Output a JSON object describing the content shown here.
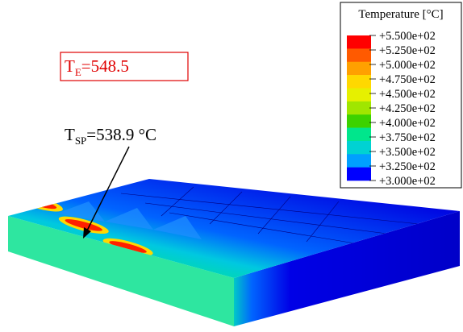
{
  "legend": {
    "title": "Temperature [°C]",
    "labels": [
      "+5.500e+02",
      "+5.250e+02",
      "+5.000e+02",
      "+4.750e+02",
      "+4.500e+02",
      "+4.250e+02",
      "+4.000e+02",
      "+3.750e+02",
      "+3.500e+02",
      "+3.250e+02",
      "+3.000e+02"
    ],
    "colors": [
      "#ff0000",
      "#ff5a00",
      "#ffa000",
      "#ffd800",
      "#e6f000",
      "#a0e600",
      "#3cd200",
      "#00e68c",
      "#00d2d2",
      "#00a0ff",
      "#0000ff"
    ]
  },
  "annotations": {
    "t_e": {
      "symbol": "T",
      "subscript": "E",
      "text": "=548.5"
    },
    "t_sp": {
      "symbol": "T",
      "subscript": "SP",
      "text": "=538.9 °C"
    }
  }
}
